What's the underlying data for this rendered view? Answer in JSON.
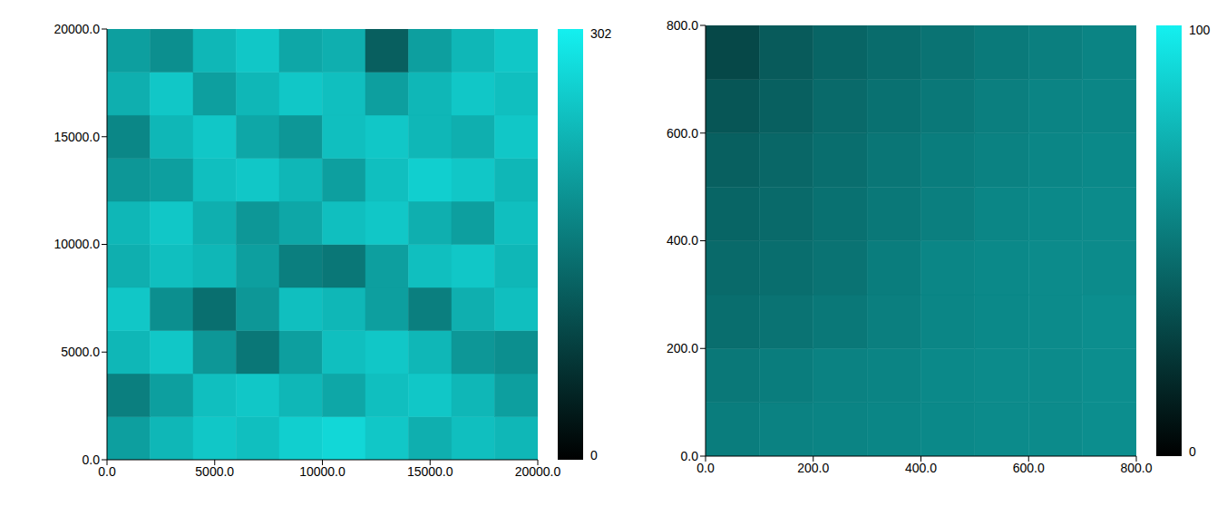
{
  "chart_data": [
    {
      "type": "heatmap",
      "xlim": [
        0,
        20000
      ],
      "ylim": [
        0,
        20000
      ],
      "xticks": [
        {
          "value": 0,
          "label": "0.0"
        },
        {
          "value": 5000,
          "label": "5000.0"
        },
        {
          "value": 10000,
          "label": "10000.0"
        },
        {
          "value": 15000,
          "label": "15000.0"
        },
        {
          "value": 20000,
          "label": "20000.0"
        }
      ],
      "yticks": [
        {
          "value": 0,
          "label": "0.0"
        },
        {
          "value": 5000,
          "label": "5000.0"
        },
        {
          "value": 10000,
          "label": "10000.0"
        },
        {
          "value": 15000,
          "label": "15000.0"
        },
        {
          "value": 20000,
          "label": "20000.0"
        }
      ],
      "cells": [
        [
          200,
          230,
          250,
          240,
          260,
          270,
          250,
          220,
          240,
          230
        ],
        [
          160,
          200,
          240,
          250,
          230,
          210,
          240,
          250,
          230,
          200
        ],
        [
          230,
          250,
          190,
          150,
          200,
          240,
          250,
          230,
          190,
          180
        ],
        [
          250,
          180,
          140,
          190,
          240,
          230,
          200,
          160,
          220,
          240
        ],
        [
          220,
          240,
          230,
          200,
          160,
          150,
          200,
          240,
          250,
          230
        ],
        [
          230,
          250,
          220,
          190,
          210,
          240,
          250,
          220,
          200,
          240
        ],
        [
          190,
          200,
          240,
          250,
          230,
          200,
          240,
          260,
          250,
          230
        ],
        [
          170,
          230,
          250,
          210,
          190,
          240,
          250,
          230,
          220,
          250
        ],
        [
          220,
          250,
          200,
          230,
          250,
          240,
          200,
          230,
          250,
          240
        ],
        [
          200,
          180,
          230,
          250,
          210,
          220,
          120,
          200,
          230,
          250
        ]
      ],
      "colorbar": {
        "range": [
          0,
          302
        ],
        "ticks": [
          0,
          302
        ]
      }
    },
    {
      "type": "heatmap",
      "xlim": [
        0,
        800
      ],
      "ylim": [
        0,
        800
      ],
      "xticks": [
        {
          "value": 0,
          "label": "0.0"
        },
        {
          "value": 200,
          "label": "200.0"
        },
        {
          "value": 400,
          "label": "400.0"
        },
        {
          "value": 600,
          "label": "600.0"
        },
        {
          "value": 800,
          "label": "800.0"
        }
      ],
      "yticks": [
        {
          "value": 0,
          "label": "0.0"
        },
        {
          "value": 200,
          "label": "200.0"
        },
        {
          "value": 400,
          "label": "400.0"
        },
        {
          "value": 600,
          "label": "600.0"
        },
        {
          "value": 800,
          "label": "800.0"
        }
      ],
      "cells": [
        [
          52,
          54,
          55,
          56,
          57,
          58,
          58,
          59
        ],
        [
          50,
          52,
          54,
          55,
          57,
          58,
          58,
          59
        ],
        [
          46,
          48,
          50,
          53,
          56,
          57,
          58,
          59
        ],
        [
          44,
          46,
          48,
          52,
          56,
          57,
          58,
          58
        ],
        [
          42,
          44,
          47,
          50,
          53,
          56,
          57,
          58
        ],
        [
          40,
          43,
          46,
          49,
          52,
          54,
          56,
          57
        ],
        [
          36,
          40,
          44,
          47,
          50,
          53,
          55,
          56
        ],
        [
          30,
          38,
          42,
          45,
          48,
          51,
          53,
          55
        ]
      ],
      "colorbar": {
        "range": [
          0,
          100
        ],
        "ticks": [
          0,
          100
        ]
      }
    }
  ]
}
